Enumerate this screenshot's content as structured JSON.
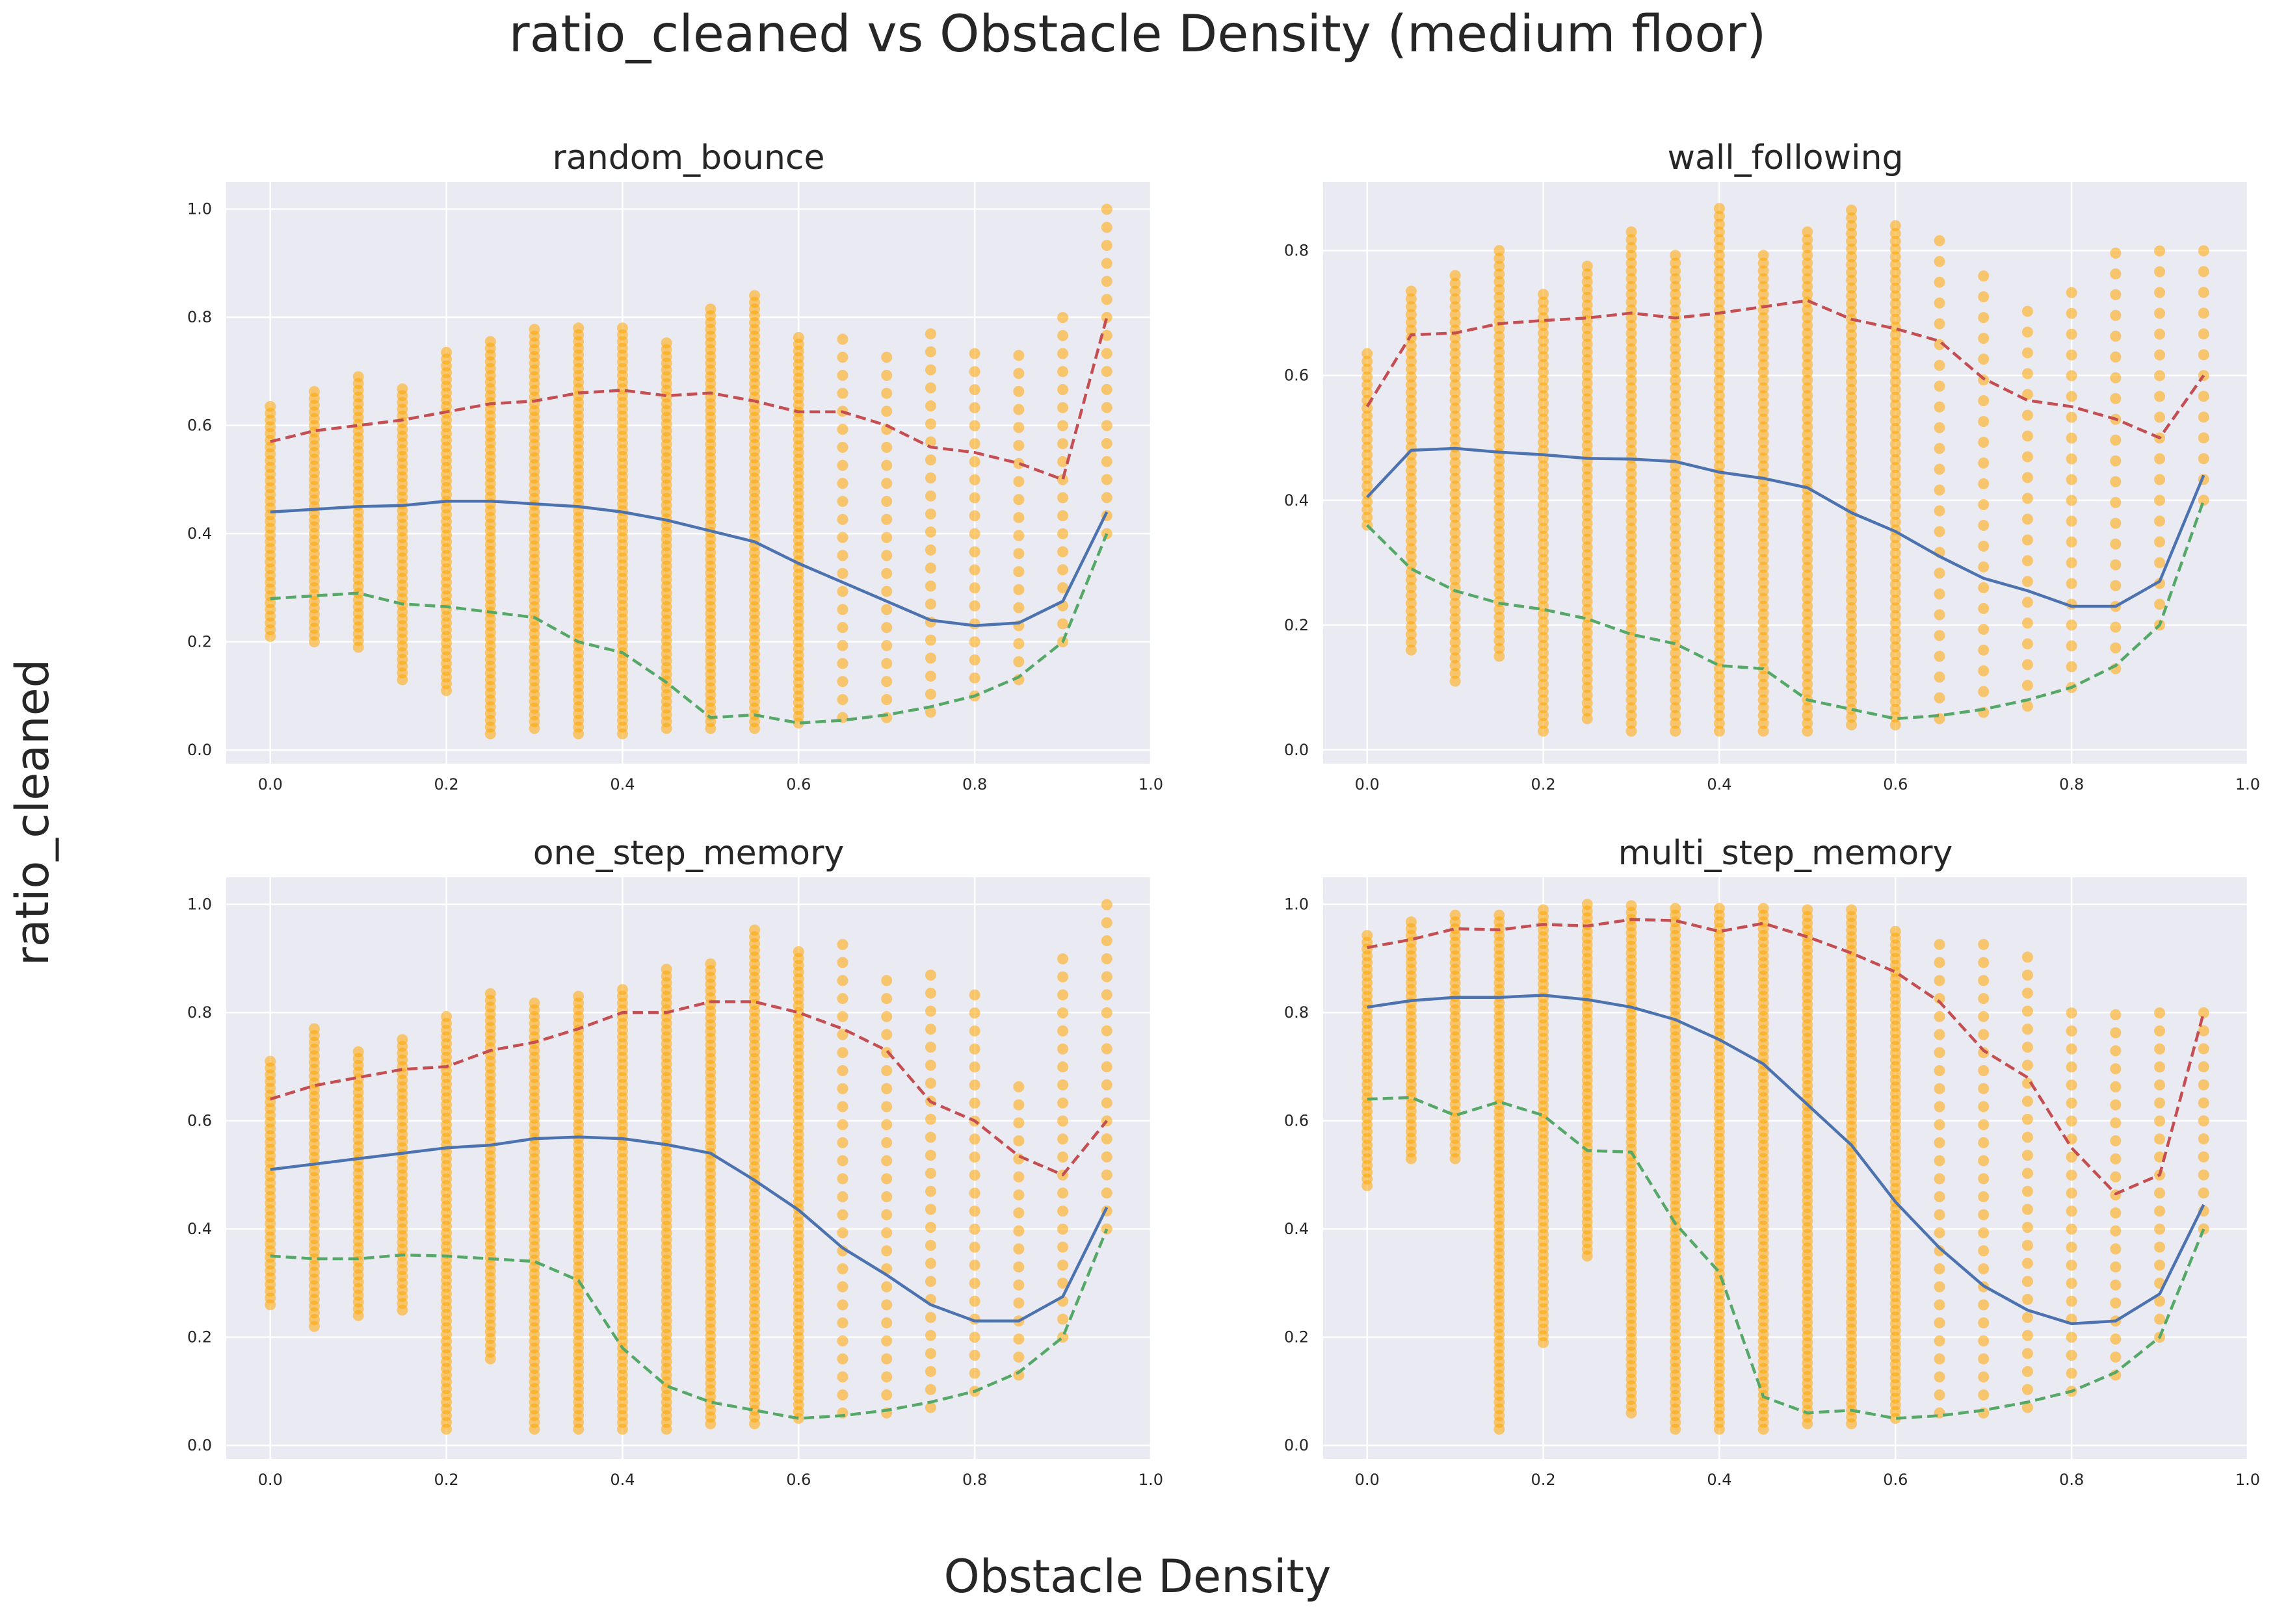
{
  "figure": {
    "title": "ratio_cleaned vs Obstacle Density (medium floor)",
    "xlabel": "Obstacle Density",
    "ylabel": "ratio_cleaned"
  },
  "colors": {
    "background": "#eaeaf2",
    "grid": "#ffffff",
    "scatter": "#ffa500",
    "median_line": "#4c72b0",
    "upper_line": "#c44e52",
    "lower_line": "#55a868"
  },
  "chart_data": [
    {
      "type": "scatter",
      "title": "random_bounce",
      "xlim": [
        -0.05,
        1.0
      ],
      "ylim": [
        -0.025,
        1.05
      ],
      "xticks": [
        "0.0",
        "0.2",
        "0.4",
        "0.6",
        "0.8",
        "1.0"
      ],
      "yticks": [
        "0.0",
        "0.2",
        "0.4",
        "0.6",
        "0.8",
        "1.0"
      ],
      "x": [
        0.0,
        0.05,
        0.1,
        0.15,
        0.2,
        0.25,
        0.3,
        0.35,
        0.4,
        0.45,
        0.5,
        0.55,
        0.6,
        0.65,
        0.7,
        0.75,
        0.8,
        0.85,
        0.9,
        0.95
      ],
      "scatter_range": [
        [
          0.21,
          0.64
        ],
        [
          0.2,
          0.67
        ],
        [
          0.19,
          0.7
        ],
        [
          0.13,
          0.67
        ],
        [
          0.11,
          0.74
        ],
        [
          0.03,
          0.76
        ],
        [
          0.04,
          0.78
        ],
        [
          0.03,
          0.78
        ],
        [
          0.03,
          0.78
        ],
        [
          0.04,
          0.76
        ],
        [
          0.04,
          0.82
        ],
        [
          0.04,
          0.84
        ],
        [
          0.05,
          0.77
        ],
        [
          0.06,
          0.77
        ],
        [
          0.06,
          0.73
        ],
        [
          0.07,
          0.8
        ],
        [
          0.1,
          0.75
        ],
        [
          0.13,
          0.73
        ],
        [
          0.2,
          0.8
        ],
        [
          0.4,
          1.0
        ]
      ],
      "series": [
        {
          "role": "median",
          "style": "solid",
          "values": [
            0.44,
            0.445,
            0.45,
            0.452,
            0.46,
            0.46,
            0.455,
            0.45,
            0.44,
            0.425,
            0.405,
            0.385,
            0.345,
            0.31,
            0.275,
            0.24,
            0.23,
            0.235,
            0.275,
            0.44
          ]
        },
        {
          "role": "upper",
          "style": "dashed",
          "values": [
            0.57,
            0.59,
            0.6,
            0.61,
            0.625,
            0.64,
            0.645,
            0.66,
            0.665,
            0.655,
            0.66,
            0.645,
            0.625,
            0.625,
            0.6,
            0.56,
            0.55,
            0.53,
            0.5,
            0.8
          ]
        },
        {
          "role": "lower",
          "style": "dashed",
          "values": [
            0.28,
            0.285,
            0.29,
            0.27,
            0.265,
            0.255,
            0.245,
            0.2,
            0.18,
            0.125,
            0.06,
            0.065,
            0.05,
            0.055,
            0.065,
            0.08,
            0.1,
            0.135,
            0.2,
            0.4
          ]
        }
      ]
    },
    {
      "type": "scatter",
      "title": "wall_following",
      "xlim": [
        -0.05,
        1.0
      ],
      "ylim": [
        -0.022,
        0.91
      ],
      "xticks": [
        "0.0",
        "0.2",
        "0.4",
        "0.6",
        "0.8",
        "1.0"
      ],
      "yticks": [
        "0.0",
        "0.2",
        "0.4",
        "0.6",
        "0.8"
      ],
      "x": [
        0.0,
        0.05,
        0.1,
        0.15,
        0.2,
        0.25,
        0.3,
        0.35,
        0.4,
        0.45,
        0.5,
        0.55,
        0.6,
        0.65,
        0.7,
        0.75,
        0.8,
        0.85,
        0.9,
        0.95
      ],
      "scatter_range": [
        [
          0.36,
          0.64
        ],
        [
          0.16,
          0.74
        ],
        [
          0.11,
          0.76
        ],
        [
          0.15,
          0.8
        ],
        [
          0.03,
          0.74
        ],
        [
          0.05,
          0.78
        ],
        [
          0.03,
          0.84
        ],
        [
          0.03,
          0.8
        ],
        [
          0.03,
          0.87
        ],
        [
          0.03,
          0.8
        ],
        [
          0.03,
          0.84
        ],
        [
          0.04,
          0.87
        ],
        [
          0.04,
          0.85
        ],
        [
          0.05,
          0.83
        ],
        [
          0.06,
          0.77
        ],
        [
          0.07,
          0.72
        ],
        [
          0.1,
          0.75
        ],
        [
          0.13,
          0.8
        ],
        [
          0.2,
          0.8
        ],
        [
          0.4,
          0.8
        ]
      ],
      "series": [
        {
          "role": "median",
          "style": "solid",
          "values": [
            0.405,
            0.48,
            0.483,
            0.477,
            0.473,
            0.467,
            0.466,
            0.462,
            0.445,
            0.435,
            0.42,
            0.38,
            0.35,
            0.31,
            0.275,
            0.255,
            0.23,
            0.23,
            0.27,
            0.44
          ]
        },
        {
          "role": "upper",
          "style": "dashed",
          "values": [
            0.55,
            0.665,
            0.668,
            0.683,
            0.688,
            0.692,
            0.7,
            0.692,
            0.7,
            0.71,
            0.72,
            0.69,
            0.675,
            0.655,
            0.595,
            0.56,
            0.55,
            0.53,
            0.5,
            0.6
          ]
        },
        {
          "role": "lower",
          "style": "dashed",
          "values": [
            0.36,
            0.29,
            0.255,
            0.235,
            0.225,
            0.21,
            0.185,
            0.17,
            0.135,
            0.13,
            0.08,
            0.065,
            0.05,
            0.055,
            0.065,
            0.08,
            0.1,
            0.135,
            0.2,
            0.4
          ]
        }
      ]
    },
    {
      "type": "scatter",
      "title": "one_step_memory",
      "xlim": [
        -0.05,
        1.0
      ],
      "ylim": [
        -0.025,
        1.05
      ],
      "xticks": [
        "0.0",
        "0.2",
        "0.4",
        "0.6",
        "0.8",
        "1.0"
      ],
      "yticks": [
        "0.0",
        "0.2",
        "0.4",
        "0.6",
        "0.8",
        "1.0"
      ],
      "x": [
        0.0,
        0.05,
        0.1,
        0.15,
        0.2,
        0.25,
        0.3,
        0.35,
        0.4,
        0.45,
        0.5,
        0.55,
        0.6,
        0.65,
        0.7,
        0.75,
        0.8,
        0.85,
        0.9,
        0.95
      ],
      "scatter_range": [
        [
          0.26,
          0.71
        ],
        [
          0.22,
          0.78
        ],
        [
          0.24,
          0.73
        ],
        [
          0.25,
          0.76
        ],
        [
          0.03,
          0.8
        ],
        [
          0.16,
          0.84
        ],
        [
          0.03,
          0.82
        ],
        [
          0.03,
          0.83
        ],
        [
          0.03,
          0.85
        ],
        [
          0.03,
          0.89
        ],
        [
          0.04,
          0.9
        ],
        [
          0.04,
          0.96
        ],
        [
          0.05,
          0.92
        ],
        [
          0.06,
          0.94
        ],
        [
          0.06,
          0.86
        ],
        [
          0.07,
          0.88
        ],
        [
          0.1,
          0.85
        ],
        [
          0.13,
          0.67
        ],
        [
          0.2,
          0.9
        ],
        [
          0.4,
          1.0
        ]
      ],
      "series": [
        {
          "role": "median",
          "style": "solid",
          "values": [
            0.51,
            0.52,
            0.53,
            0.54,
            0.55,
            0.555,
            0.567,
            0.57,
            0.567,
            0.556,
            0.54,
            0.49,
            0.435,
            0.365,
            0.315,
            0.26,
            0.23,
            0.23,
            0.275,
            0.44
          ]
        },
        {
          "role": "upper",
          "style": "dashed",
          "values": [
            0.64,
            0.665,
            0.68,
            0.695,
            0.7,
            0.73,
            0.745,
            0.77,
            0.8,
            0.8,
            0.82,
            0.82,
            0.8,
            0.77,
            0.73,
            0.635,
            0.6,
            0.535,
            0.5,
            0.6
          ]
        },
        {
          "role": "lower",
          "style": "dashed",
          "values": [
            0.35,
            0.345,
            0.345,
            0.352,
            0.35,
            0.345,
            0.34,
            0.305,
            0.18,
            0.11,
            0.08,
            0.065,
            0.05,
            0.055,
            0.065,
            0.08,
            0.1,
            0.135,
            0.2,
            0.4
          ]
        }
      ]
    },
    {
      "type": "scatter",
      "title": "multi_step_memory",
      "xlim": [
        -0.05,
        1.0
      ],
      "ylim": [
        -0.025,
        1.05
      ],
      "xticks": [
        "0.0",
        "0.2",
        "0.4",
        "0.6",
        "0.8",
        "1.0"
      ],
      "yticks": [
        "0.0",
        "0.2",
        "0.4",
        "0.6",
        "0.8",
        "1.0"
      ],
      "x": [
        0.0,
        0.05,
        0.1,
        0.15,
        0.2,
        0.25,
        0.3,
        0.35,
        0.4,
        0.45,
        0.5,
        0.55,
        0.6,
        0.65,
        0.7,
        0.75,
        0.8,
        0.85,
        0.9,
        0.95
      ],
      "scatter_range": [
        [
          0.48,
          0.95
        ],
        [
          0.53,
          0.97
        ],
        [
          0.53,
          0.99
        ],
        [
          0.03,
          0.98
        ],
        [
          0.19,
          0.99
        ],
        [
          0.35,
          1.0
        ],
        [
          0.06,
          1.0
        ],
        [
          0.03,
          1.0
        ],
        [
          0.03,
          1.0
        ],
        [
          0.03,
          1.0
        ],
        [
          0.04,
          1.0
        ],
        [
          0.04,
          1.0
        ],
        [
          0.05,
          0.95
        ],
        [
          0.06,
          0.94
        ],
        [
          0.06,
          0.93
        ],
        [
          0.07,
          0.92
        ],
        [
          0.1,
          0.8
        ],
        [
          0.13,
          0.8
        ],
        [
          0.2,
          0.8
        ],
        [
          0.4,
          0.8
        ]
      ],
      "series": [
        {
          "role": "median",
          "style": "solid",
          "values": [
            0.81,
            0.822,
            0.828,
            0.828,
            0.832,
            0.824,
            0.81,
            0.787,
            0.75,
            0.705,
            0.63,
            0.555,
            0.45,
            0.365,
            0.295,
            0.25,
            0.225,
            0.23,
            0.28,
            0.445
          ]
        },
        {
          "role": "upper",
          "style": "dashed",
          "values": [
            0.92,
            0.935,
            0.955,
            0.953,
            0.963,
            0.96,
            0.972,
            0.97,
            0.95,
            0.965,
            0.94,
            0.91,
            0.875,
            0.82,
            0.73,
            0.68,
            0.55,
            0.465,
            0.5,
            0.8
          ]
        },
        {
          "role": "lower",
          "style": "dashed",
          "values": [
            0.64,
            0.643,
            0.61,
            0.635,
            0.61,
            0.545,
            0.542,
            0.41,
            0.32,
            0.09,
            0.06,
            0.065,
            0.05,
            0.055,
            0.065,
            0.08,
            0.1,
            0.135,
            0.2,
            0.4
          ]
        }
      ]
    }
  ]
}
